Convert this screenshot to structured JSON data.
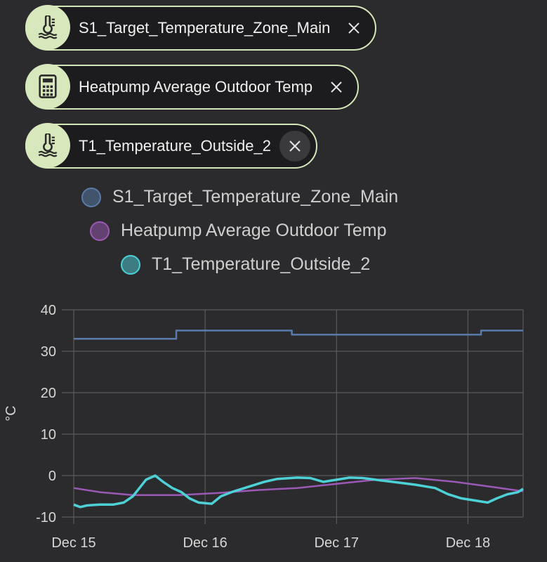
{
  "chips": [
    {
      "label": "S1_Target_Temperature_Zone_Main",
      "icon": "thermometer-water-icon"
    },
    {
      "label": "Heatpump Average Outdoor Temp",
      "icon": "calculator-icon"
    },
    {
      "label": "T1_Temperature_Outside_2",
      "icon": "thermometer-water-icon"
    }
  ],
  "colors": {
    "chip_border": "#d4e7b8",
    "chip_icon_bg": "#d7e8bd",
    "series_1": "#5a7bab",
    "series_2": "#9b59b6",
    "series_3": "#4dd0d6"
  },
  "chart_data": {
    "type": "line",
    "ylabel": "°C",
    "ylim": [
      -10,
      40
    ],
    "yticks": [
      "40",
      "30",
      "20",
      "10",
      "0",
      "-10"
    ],
    "xticks": [
      "Dec 15",
      "Dec 16",
      "Dec 17",
      "Dec 18"
    ],
    "xrange_days": [
      0,
      3.42
    ],
    "grid": true,
    "legend_position": "top-center",
    "series": [
      {
        "name": "S1_Target_Temperature_Zone_Main",
        "color": "#5a7bab",
        "step": true,
        "points": [
          [
            0,
            33
          ],
          [
            0.78,
            33
          ],
          [
            0.78,
            35
          ],
          [
            1.66,
            35
          ],
          [
            1.66,
            34
          ],
          [
            3.1,
            34
          ],
          [
            3.1,
            35
          ],
          [
            3.42,
            35
          ]
        ]
      },
      {
        "name": "Heatpump Average Outdoor Temp",
        "color": "#9b59b6",
        "step": false,
        "points": [
          [
            0,
            -3
          ],
          [
            0.2,
            -4
          ],
          [
            0.45,
            -4.7
          ],
          [
            0.8,
            -4.7
          ],
          [
            1.1,
            -4.2
          ],
          [
            1.4,
            -3.5
          ],
          [
            1.7,
            -3
          ],
          [
            2.0,
            -2
          ],
          [
            2.3,
            -1
          ],
          [
            2.6,
            -0.6
          ],
          [
            2.9,
            -1.5
          ],
          [
            3.2,
            -2.8
          ],
          [
            3.42,
            -3.8
          ]
        ]
      },
      {
        "name": "T1_Temperature_Outside_2",
        "color": "#4dd0d6",
        "step": false,
        "points": [
          [
            0,
            -7
          ],
          [
            0.05,
            -7.6
          ],
          [
            0.1,
            -7.2
          ],
          [
            0.2,
            -7
          ],
          [
            0.3,
            -7
          ],
          [
            0.38,
            -6.5
          ],
          [
            0.45,
            -5
          ],
          [
            0.5,
            -3
          ],
          [
            0.55,
            -1
          ],
          [
            0.62,
            0
          ],
          [
            0.68,
            -1.5
          ],
          [
            0.75,
            -3
          ],
          [
            0.82,
            -4
          ],
          [
            0.88,
            -5.5
          ],
          [
            0.95,
            -6.5
          ],
          [
            1.05,
            -6.8
          ],
          [
            1.12,
            -5
          ],
          [
            1.2,
            -4
          ],
          [
            1.3,
            -3
          ],
          [
            1.45,
            -1.5
          ],
          [
            1.55,
            -0.8
          ],
          [
            1.7,
            -0.5
          ],
          [
            1.8,
            -0.6
          ],
          [
            1.9,
            -1.5
          ],
          [
            2.0,
            -1
          ],
          [
            2.1,
            -0.5
          ],
          [
            2.2,
            -0.6
          ],
          [
            2.35,
            -1.2
          ],
          [
            2.5,
            -1.8
          ],
          [
            2.6,
            -2.2
          ],
          [
            2.75,
            -3
          ],
          [
            2.85,
            -4.5
          ],
          [
            2.95,
            -5.5
          ],
          [
            3.05,
            -6
          ],
          [
            3.15,
            -6.5
          ],
          [
            3.22,
            -5.5
          ],
          [
            3.3,
            -4.5
          ],
          [
            3.38,
            -4
          ],
          [
            3.42,
            -3.2
          ]
        ]
      }
    ]
  }
}
